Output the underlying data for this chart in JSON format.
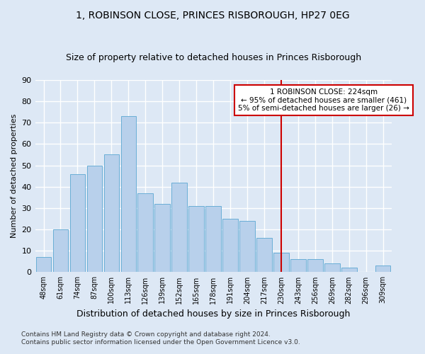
{
  "title": "1, ROBINSON CLOSE, PRINCES RISBOROUGH, HP27 0EG",
  "subtitle": "Size of property relative to detached houses in Princes Risborough",
  "xlabel": "Distribution of detached houses by size in Princes Risborough",
  "ylabel": "Number of detached properties",
  "footnote1": "Contains HM Land Registry data © Crown copyright and database right 2024.",
  "footnote2": "Contains public sector information licensed under the Open Government Licence v3.0.",
  "categories": [
    "48sqm",
    "61sqm",
    "74sqm",
    "87sqm",
    "100sqm",
    "113sqm",
    "126sqm",
    "139sqm",
    "152sqm",
    "165sqm",
    "178sqm",
    "191sqm",
    "204sqm",
    "217sqm",
    "230sqm",
    "243sqm",
    "256sqm",
    "269sqm",
    "282sqm",
    "296sqm",
    "309sqm"
  ],
  "values": [
    7,
    20,
    46,
    50,
    55,
    73,
    37,
    32,
    42,
    31,
    31,
    25,
    24,
    16,
    9,
    6,
    6,
    4,
    2,
    0,
    3
  ],
  "bar_color": "#b8d0eb",
  "bar_edge_color": "#6aaed6",
  "background_color": "#dde8f5",
  "grid_color": "#ffffff",
  "ref_line_x": 14.0,
  "ref_line_color": "#cc0000",
  "annotation_line1": "1 ROBINSON CLOSE: 224sqm",
  "annotation_line2": "← 95% of detached houses are smaller (461)",
  "annotation_line3": "5% of semi-detached houses are larger (26) →",
  "annotation_box_facecolor": "#ffffff",
  "annotation_box_edgecolor": "#cc0000",
  "ylim": [
    0,
    90
  ],
  "yticks": [
    0,
    10,
    20,
    30,
    40,
    50,
    60,
    70,
    80,
    90
  ]
}
